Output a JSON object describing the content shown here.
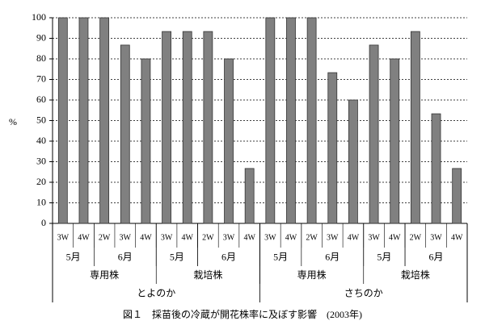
{
  "chart_data": {
    "type": "bar",
    "color": "#808080",
    "grid": true,
    "y_label": "%",
    "caption": "図１　採苗後の冷蔵が開花株率に及ぼす影響　(2003年)",
    "ylim": [
      0,
      100
    ],
    "yticks": [
      0,
      10,
      20,
      30,
      40,
      50,
      60,
      70,
      80,
      90,
      100
    ],
    "groups": [
      {
        "label": "とよのか",
        "groups": [
          {
            "label": "専用株",
            "groups": [
              {
                "label": "5月",
                "categories": [
                  "3W",
                  "4W"
                ],
                "values": [
                  100,
                  100
                ]
              },
              {
                "label": "6月",
                "categories": [
                  "2W",
                  "3W",
                  "4W"
                ],
                "values": [
                  100,
                  86.7,
                  80
                ]
              }
            ]
          },
          {
            "label": "栽培株",
            "groups": [
              {
                "label": "5月",
                "categories": [
                  "3W",
                  "4W"
                ],
                "values": [
                  93.3,
                  93.3
                ]
              },
              {
                "label": "6月",
                "categories": [
                  "2W",
                  "3W",
                  "4W"
                ],
                "values": [
                  93.3,
                  80,
                  26.7
                ]
              }
            ]
          }
        ]
      },
      {
        "label": "さちのか",
        "groups": [
          {
            "label": "専用株",
            "groups": [
              {
                "label": "5月",
                "categories": [
                  "3W",
                  "4W"
                ],
                "values": [
                  100,
                  100
                ]
              },
              {
                "label": "6月",
                "categories": [
                  "2W",
                  "3W",
                  "4W"
                ],
                "values": [
                  100,
                  73.3,
                  60
                ]
              }
            ]
          },
          {
            "label": "栽培株",
            "groups": [
              {
                "label": "5月",
                "categories": [
                  "3W",
                  "4W"
                ],
                "values": [
                  86.7,
                  80
                ]
              },
              {
                "label": "6月",
                "categories": [
                  "2W",
                  "3W",
                  "4W"
                ],
                "values": [
                  93.3,
                  53.3,
                  26.7
                ]
              }
            ]
          }
        ]
      }
    ]
  }
}
